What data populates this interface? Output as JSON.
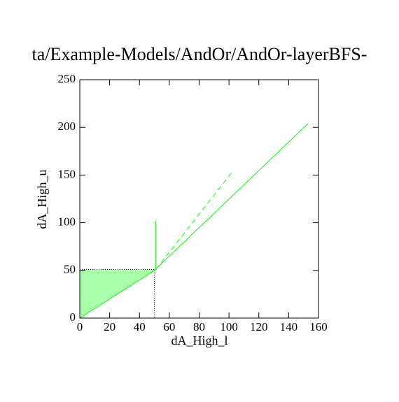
{
  "chart_data": {
    "type": "line",
    "title": "ta/Example-Models/AndOr/AndOr-layerBFS-",
    "x_label": "dA_High_l",
    "y_label": "dA_High_u",
    "xlim": [
      0,
      160
    ],
    "ylim": [
      0,
      250
    ],
    "xticks": [
      0,
      20,
      40,
      60,
      80,
      100,
      120,
      140,
      160
    ],
    "yticks": [
      0,
      50,
      100,
      150,
      200,
      250
    ],
    "series": [
      {
        "style": "area",
        "color": "#aaffaa",
        "x": [
          0,
          50,
          50,
          0
        ],
        "values": [
          0,
          50,
          51,
          51
        ]
      },
      {
        "style": "dotted",
        "color": "#000000",
        "x": [
          0,
          50,
          50
        ],
        "values": [
          51,
          51,
          0
        ]
      },
      {
        "style": "solid",
        "color": "#00ff00",
        "x": [
          0,
          50,
          153
        ],
        "values": [
          0,
          50,
          204
        ]
      },
      {
        "style": "solid",
        "color": "#00ff00",
        "x": [
          51,
          51
        ],
        "values": [
          50,
          102
        ]
      },
      {
        "style": "dashed",
        "color": "#00ff00",
        "x": [
          51,
          103
        ],
        "values": [
          51,
          155
        ]
      }
    ]
  }
}
